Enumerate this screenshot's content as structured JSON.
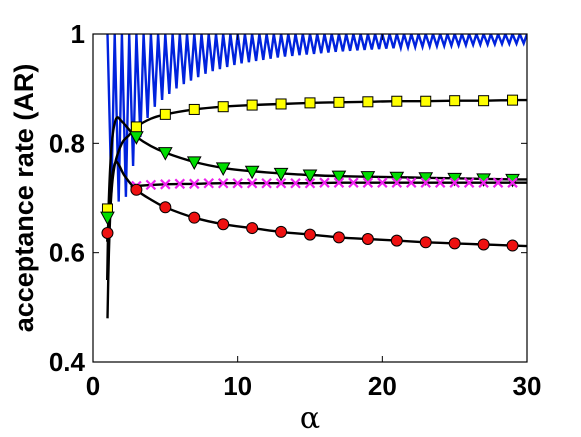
{
  "chart_data": {
    "type": "line",
    "xlabel": "α",
    "ylabel": "acceptance rate (AR)",
    "xlim": [
      0,
      30
    ],
    "ylim": [
      0.4,
      1
    ],
    "xticks": [
      {
        "value": 0,
        "label": "0"
      },
      {
        "value": 10,
        "label": "10"
      },
      {
        "value": 20,
        "label": "20"
      },
      {
        "value": 30,
        "label": "30"
      }
    ],
    "yticks": [
      {
        "value": 0.4,
        "label": "0.4"
      },
      {
        "value": 0.6,
        "label": "0.6"
      },
      {
        "value": 0.8,
        "label": "0.8"
      },
      {
        "value": 1,
        "label": "1"
      }
    ],
    "grid": false,
    "colors": {
      "oscillating": "#0022dd",
      "curve": "#000000",
      "square_fill": "#ffff00",
      "triangle_fill": "#00dd00",
      "cross": "#ee22ee",
      "circle_fill": "#ee1111"
    },
    "series": [
      {
        "marker": "square",
        "curve": [
          [
            1.0,
            0.48
          ],
          [
            1.1,
            0.6
          ],
          [
            1.25,
            0.7
          ],
          [
            1.5,
            0.76
          ],
          [
            2.0,
            0.8
          ],
          [
            2.5,
            0.815
          ],
          [
            3.0,
            0.83
          ],
          [
            4.0,
            0.845
          ],
          [
            5.0,
            0.853
          ],
          [
            7.0,
            0.862
          ],
          [
            9.0,
            0.867
          ],
          [
            11.0,
            0.87
          ],
          [
            13.0,
            0.872
          ],
          [
            15.0,
            0.874
          ],
          [
            17.0,
            0.875
          ],
          [
            19.0,
            0.876
          ],
          [
            21.0,
            0.877
          ],
          [
            23.0,
            0.877
          ],
          [
            25.0,
            0.878
          ],
          [
            27.0,
            0.878
          ],
          [
            29.0,
            0.879
          ],
          [
            30.0,
            0.879
          ]
        ],
        "points": [
          [
            1,
            0.68
          ],
          [
            3,
            0.83
          ],
          [
            5,
            0.853
          ],
          [
            7,
            0.862
          ],
          [
            9,
            0.867
          ],
          [
            11,
            0.87
          ],
          [
            13,
            0.872
          ],
          [
            15,
            0.874
          ],
          [
            17,
            0.875
          ],
          [
            19,
            0.876
          ],
          [
            21,
            0.877
          ],
          [
            23,
            0.877
          ],
          [
            25,
            0.878
          ],
          [
            27,
            0.878
          ],
          [
            29,
            0.879
          ]
        ]
      },
      {
        "marker": "triangle",
        "curve": [
          [
            0.98,
            0.55
          ],
          [
            1.1,
            0.7
          ],
          [
            1.3,
            0.8
          ],
          [
            1.6,
            0.845
          ],
          [
            2.0,
            0.84
          ],
          [
            2.5,
            0.825
          ],
          [
            3.0,
            0.812
          ],
          [
            4.0,
            0.795
          ],
          [
            5.0,
            0.783
          ],
          [
            7.0,
            0.766
          ],
          [
            9.0,
            0.755
          ],
          [
            11.0,
            0.749
          ],
          [
            13.0,
            0.745
          ],
          [
            15.0,
            0.742
          ],
          [
            17.0,
            0.74
          ],
          [
            19.0,
            0.739
          ],
          [
            21.0,
            0.738
          ],
          [
            23.0,
            0.737
          ],
          [
            25.0,
            0.736
          ],
          [
            27.0,
            0.735
          ],
          [
            29.0,
            0.734
          ],
          [
            30.0,
            0.734
          ]
        ],
        "points": [
          [
            1,
            0.665
          ],
          [
            3,
            0.812
          ],
          [
            5,
            0.783
          ],
          [
            7,
            0.766
          ],
          [
            9,
            0.755
          ],
          [
            11,
            0.749
          ],
          [
            13,
            0.745
          ],
          [
            15,
            0.742
          ],
          [
            17,
            0.74
          ],
          [
            19,
            0.739
          ],
          [
            21,
            0.738
          ],
          [
            23,
            0.737
          ],
          [
            25,
            0.736
          ],
          [
            27,
            0.735
          ],
          [
            29,
            0.734
          ]
        ]
      },
      {
        "marker": "cross",
        "curve": [
          [
            2.6,
            0.72
          ],
          [
            3,
            0.722
          ],
          [
            5,
            0.725
          ],
          [
            7,
            0.726
          ],
          [
            9,
            0.727
          ],
          [
            11,
            0.727
          ],
          [
            13,
            0.727
          ],
          [
            15,
            0.727
          ],
          [
            17,
            0.728
          ],
          [
            19,
            0.728
          ],
          [
            21,
            0.728
          ],
          [
            23,
            0.728
          ],
          [
            25,
            0.728
          ],
          [
            27,
            0.728
          ],
          [
            29,
            0.728
          ],
          [
            30,
            0.728
          ]
        ],
        "points": [
          [
            3,
            0.722
          ],
          [
            4,
            0.724
          ],
          [
            5,
            0.725
          ],
          [
            6,
            0.726
          ],
          [
            7,
            0.726
          ],
          [
            8,
            0.727
          ],
          [
            9,
            0.727
          ],
          [
            10,
            0.727
          ],
          [
            11,
            0.727
          ],
          [
            12,
            0.727
          ],
          [
            13,
            0.727
          ],
          [
            14,
            0.727
          ],
          [
            15,
            0.727
          ],
          [
            16,
            0.728
          ],
          [
            17,
            0.728
          ],
          [
            18,
            0.728
          ],
          [
            19,
            0.728
          ],
          [
            20,
            0.728
          ],
          [
            21,
            0.728
          ],
          [
            22,
            0.728
          ],
          [
            23,
            0.728
          ],
          [
            24,
            0.728
          ],
          [
            25,
            0.728
          ],
          [
            26,
            0.728
          ],
          [
            27,
            0.728
          ],
          [
            28,
            0.728
          ],
          [
            29,
            0.728
          ]
        ]
      },
      {
        "marker": "circle",
        "curve": [
          [
            0.98,
            0.62
          ],
          [
            1.1,
            0.67
          ],
          [
            1.3,
            0.735
          ],
          [
            1.55,
            0.765
          ],
          [
            1.8,
            0.76
          ],
          [
            2.2,
            0.74
          ],
          [
            3.0,
            0.715
          ],
          [
            4.0,
            0.697
          ],
          [
            5.0,
            0.683
          ],
          [
            7.0,
            0.664
          ],
          [
            9.0,
            0.652
          ],
          [
            11.0,
            0.645
          ],
          [
            13.0,
            0.638
          ],
          [
            15.0,
            0.633
          ],
          [
            17.0,
            0.628
          ],
          [
            19.0,
            0.625
          ],
          [
            21.0,
            0.622
          ],
          [
            23.0,
            0.619
          ],
          [
            25.0,
            0.617
          ],
          [
            27.0,
            0.615
          ],
          [
            29.0,
            0.613
          ],
          [
            30.0,
            0.612
          ]
        ],
        "points": [
          [
            1,
            0.636
          ],
          [
            3,
            0.715
          ],
          [
            5,
            0.683
          ],
          [
            7,
            0.664
          ],
          [
            9,
            0.652
          ],
          [
            11,
            0.645
          ],
          [
            13,
            0.638
          ],
          [
            15,
            0.633
          ],
          [
            17,
            0.628
          ],
          [
            19,
            0.625
          ],
          [
            21,
            0.622
          ],
          [
            23,
            0.619
          ],
          [
            25,
            0.617
          ],
          [
            27,
            0.615
          ],
          [
            29,
            0.613
          ]
        ]
      },
      {
        "marker": "none",
        "style": "sawtooth",
        "peak": 1.0,
        "troughs": [
          [
            1.5,
            0.71
          ],
          [
            2.0,
            0.68
          ],
          [
            2.5,
            0.72
          ],
          [
            3.0,
            0.79
          ],
          [
            3.5,
            0.83
          ],
          [
            4.0,
            0.86
          ],
          [
            5.0,
            0.885
          ],
          [
            6.0,
            0.905
          ],
          [
            8.0,
            0.93
          ],
          [
            10.0,
            0.945
          ],
          [
            13.0,
            0.958
          ],
          [
            17.0,
            0.968
          ],
          [
            22.0,
            0.976
          ],
          [
            26.0,
            0.98
          ],
          [
            30.0,
            0.983
          ]
        ],
        "step": 0.5,
        "x_start": 1.0
      }
    ]
  }
}
